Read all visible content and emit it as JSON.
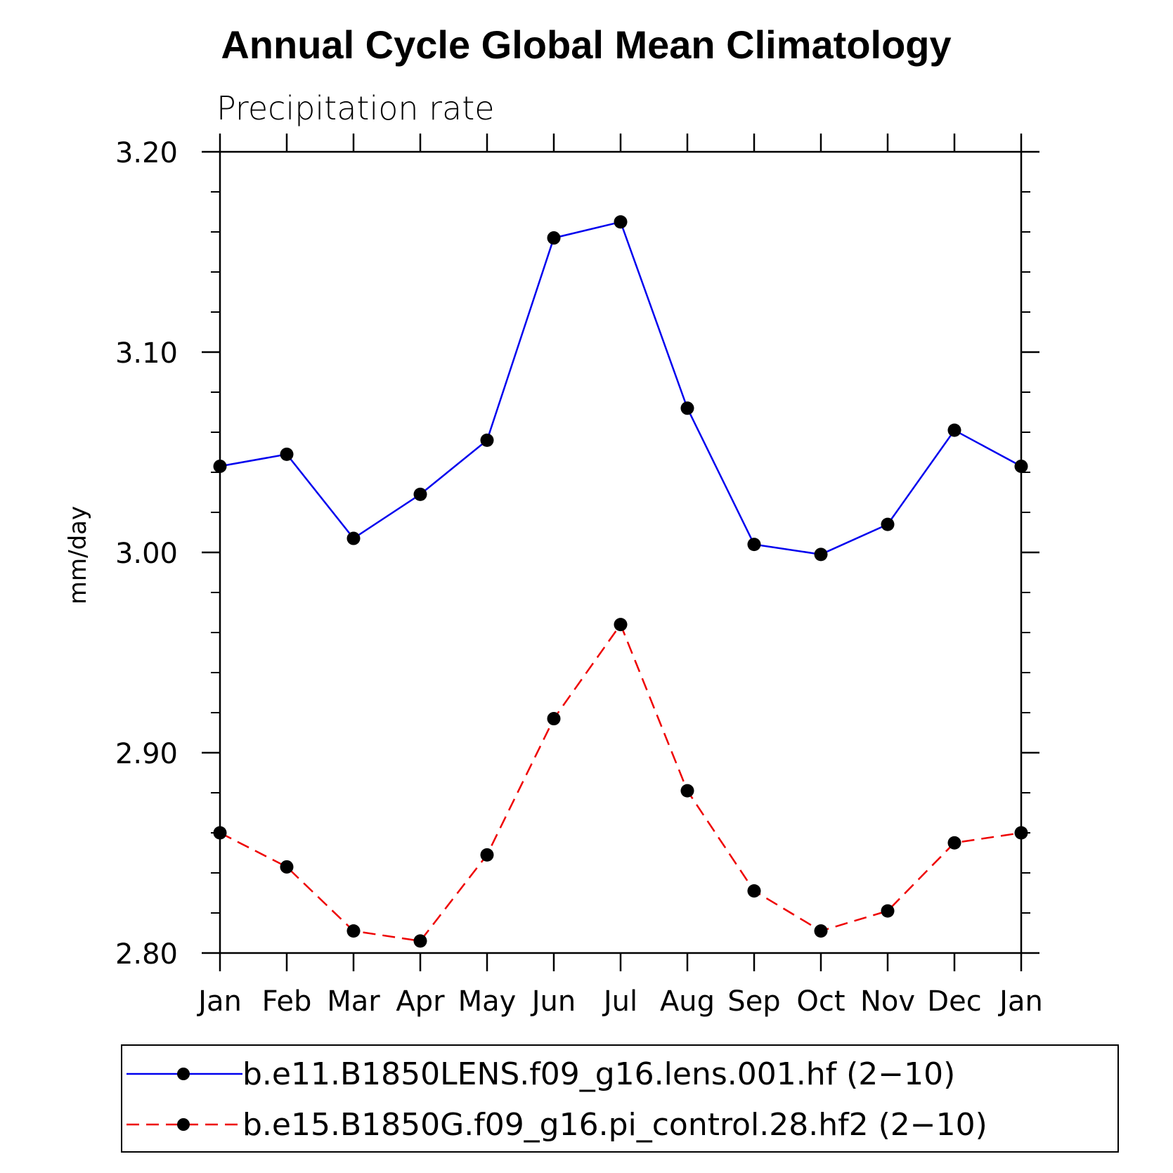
{
  "chart_data": {
    "type": "line",
    "title": "Annual Cycle Global Mean Climatology",
    "subtitle": "Precipitation rate",
    "ylabel": "mm/day",
    "xlabel": "",
    "categories": [
      "Jan",
      "Feb",
      "Mar",
      "Apr",
      "May",
      "Jun",
      "Jul",
      "Aug",
      "Sep",
      "Oct",
      "Nov",
      "Dec",
      "Jan"
    ],
    "ylim": [
      2.8,
      3.2
    ],
    "yticks": [
      2.8,
      2.9,
      3.0,
      3.1,
      3.2
    ],
    "ytick_labels": [
      "2.80",
      "2.90",
      "3.00",
      "3.10",
      "3.20"
    ],
    "legend_position": "bottom",
    "series": [
      {
        "name": "b.e11.B1850LENS.f09_g16.lens.001.hf (2−10)",
        "color": "#0000ee",
        "dash": "solid",
        "values": [
          3.043,
          3.049,
          3.007,
          3.029,
          3.056,
          3.157,
          3.165,
          3.072,
          3.004,
          2.999,
          3.014,
          3.061,
          3.043
        ]
      },
      {
        "name": "b.e15.B1850G.f09_g16.pi_control.28.hf2 (2−10)",
        "color": "#ee0000",
        "dash": "dashed",
        "values": [
          2.86,
          2.843,
          2.811,
          2.806,
          2.849,
          2.917,
          2.964,
          2.881,
          2.831,
          2.811,
          2.821,
          2.855,
          2.86
        ]
      }
    ]
  }
}
